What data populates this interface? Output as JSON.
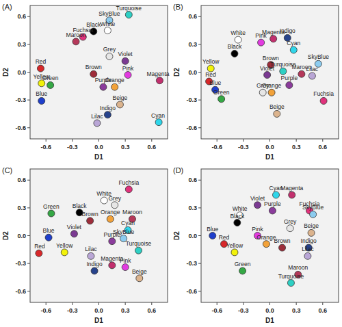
{
  "chart_data": [
    {
      "type": "scatter",
      "title": "(A)",
      "x_label": "D1",
      "y_label": "D2",
      "xlim": [
        -0.78,
        0.78
      ],
      "ylim": [
        -0.72,
        0.72
      ],
      "xticks": [
        -0.6,
        -0.3,
        {
          "value": 0,
          "label": "0.0"
        },
        0.3,
        0.6
      ],
      "yticks": [
        -0.6,
        -0.3,
        {
          "value": 0,
          "label": "0.0"
        },
        0.3,
        0.6
      ],
      "marker": "circle",
      "series": [
        {
          "name": "Turquoise",
          "color": "#2ed0c4",
          "x": [
            0.34
          ],
          "values": [
            0.62
          ]
        },
        {
          "name": "SkyBlue",
          "color": "#8ccbef",
          "x": [
            0.12
          ],
          "values": [
            0.56
          ]
        },
        {
          "name": "Fuchsia",
          "color": "#e0327c",
          "x": [
            -0.18
          ],
          "values": [
            0.38
          ]
        },
        {
          "name": "Maroon",
          "color": "#b5385a",
          "x": [
            -0.26
          ],
          "values": [
            0.33
          ]
        },
        {
          "name": "Black",
          "color": "#000000",
          "x": [
            -0.06
          ],
          "values": [
            0.44
          ]
        },
        {
          "name": "White",
          "color": "#ffffff",
          "x": [
            0.1
          ],
          "values": [
            0.45
          ]
        },
        {
          "name": "Grey",
          "color": "#e6e6e6",
          "x": [
            0.12
          ],
          "values": [
            0.17
          ]
        },
        {
          "name": "Violet",
          "color": "#7b3a92",
          "x": [
            0.3
          ],
          "values": [
            0.12
          ]
        },
        {
          "name": "Red",
          "color": "#d7282a",
          "x": [
            -0.66
          ],
          "values": [
            0.04
          ]
        },
        {
          "name": "Yellow",
          "color": "#f2f20a",
          "x": [
            -0.65
          ],
          "values": [
            -0.12
          ]
        },
        {
          "name": "Green",
          "color": "#35a845",
          "x": [
            -0.55
          ],
          "values": [
            -0.14
          ]
        },
        {
          "name": "Blue",
          "color": "#1f3fcc",
          "x": [
            -0.65
          ],
          "values": [
            -0.31
          ]
        },
        {
          "name": "Brown",
          "color": "#9e2d3a",
          "x": [
            -0.06
          ],
          "values": [
            -0.02
          ]
        },
        {
          "name": "Pink",
          "color": "#e23be0",
          "x": [
            0.33
          ],
          "values": [
            -0.03
          ]
        },
        {
          "name": "Magenta",
          "color": "#c2306e",
          "x": [
            0.69
          ],
          "values": [
            -0.09
          ]
        },
        {
          "name": "Purple",
          "color": "#8b3c9c",
          "x": [
            0.05
          ],
          "values": [
            -0.16
          ]
        },
        {
          "name": "Orange",
          "color": "#f2a23a",
          "x": [
            0.18
          ],
          "values": [
            -0.16
          ]
        },
        {
          "name": "Beige",
          "color": "#dcb48e",
          "x": [
            0.24
          ],
          "values": [
            -0.35
          ]
        },
        {
          "name": "Indigo",
          "color": "#27438c",
          "x": [
            0.1
          ],
          "values": [
            -0.46
          ]
        },
        {
          "name": "Lilac",
          "color": "#b9a6d6",
          "x": [
            -0.02
          ],
          "values": [
            -0.55
          ]
        },
        {
          "name": "Cyan",
          "color": "#2fd6ea",
          "x": [
            0.68
          ],
          "values": [
            -0.54
          ]
        }
      ]
    },
    {
      "type": "scatter",
      "title": "(B)",
      "x_label": "D1",
      "y_label": "D2",
      "xlim": [
        -0.78,
        0.78
      ],
      "ylim": [
        -0.72,
        0.72
      ],
      "xticks": [
        -0.6,
        -0.3,
        {
          "value": 0,
          "label": "0.0"
        },
        0.3,
        0.6
      ],
      "yticks": [
        -0.6,
        -0.3,
        {
          "value": 0,
          "label": "0.0"
        },
        0.3,
        0.6
      ],
      "marker": "circle",
      "series": [
        {
          "name": "White",
          "color": "#ffffff",
          "x": [
            -0.36
          ],
          "values": [
            0.35
          ]
        },
        {
          "name": "Black",
          "color": "#000000",
          "x": [
            -0.4
          ],
          "values": [
            0.2
          ]
        },
        {
          "name": "Pink",
          "color": "#e23be0",
          "x": [
            -0.1
          ],
          "values": [
            0.32
          ]
        },
        {
          "name": "Magenta",
          "color": "#c2306e",
          "x": [
            0.04
          ],
          "values": [
            0.36
          ]
        },
        {
          "name": "Indigo",
          "color": "#27438c",
          "x": [
            0.2
          ],
          "values": [
            0.37
          ]
        },
        {
          "name": "Cyan",
          "color": "#2fd6ea",
          "x": [
            0.27
          ],
          "values": [
            0.24
          ]
        },
        {
          "name": "SkyBlue",
          "color": "#8ccbef",
          "x": [
            0.55
          ],
          "values": [
            0.09
          ]
        },
        {
          "name": "Brown",
          "color": "#9e2d3a",
          "x": [
            0.01
          ],
          "values": [
            0.08
          ]
        },
        {
          "name": "Turquoise",
          "color": "#2ed0c4",
          "x": [
            0.15
          ],
          "values": [
            0.01
          ]
        },
        {
          "name": "Maroon",
          "color": "#b5385a",
          "x": [
            0.36
          ],
          "values": [
            -0.02
          ]
        },
        {
          "name": "Lilac",
          "color": "#b9a6d6",
          "x": [
            0.48
          ],
          "values": [
            -0.04
          ]
        },
        {
          "name": "Violet",
          "color": "#7b3a92",
          "x": [
            -0.03
          ],
          "values": [
            -0.03
          ]
        },
        {
          "name": "Purple",
          "color": "#8b3c9c",
          "x": [
            0.22
          ],
          "values": [
            -0.14
          ]
        },
        {
          "name": "Yellow",
          "color": "#f2f20a",
          "x": [
            -0.67
          ],
          "values": [
            0.04
          ]
        },
        {
          "name": "Red",
          "color": "#d7282a",
          "x": [
            -0.69
          ],
          "values": [
            -0.1
          ]
        },
        {
          "name": "Blue",
          "color": "#1f3fcc",
          "x": [
            -0.62
          ],
          "values": [
            -0.19
          ]
        },
        {
          "name": "Green",
          "color": "#35a845",
          "x": [
            -0.55
          ],
          "values": [
            -0.29
          ]
        },
        {
          "name": "Grey",
          "color": "#e6e6e6",
          "x": [
            -0.08
          ],
          "values": [
            -0.22
          ]
        },
        {
          "name": "Orange",
          "color": "#f2a23a",
          "x": [
            0.02
          ],
          "values": [
            -0.22
          ]
        },
        {
          "name": "Beige",
          "color": "#dcb48e",
          "x": [
            0.08
          ],
          "values": [
            -0.45
          ]
        },
        {
          "name": "Fuchsia",
          "color": "#e0327c",
          "x": [
            0.61
          ],
          "values": [
            -0.31
          ]
        }
      ]
    },
    {
      "type": "scatter",
      "title": "(C)",
      "x_label": "D1",
      "y_label": "D2",
      "xlim": [
        -0.78,
        0.78
      ],
      "ylim": [
        -0.72,
        0.72
      ],
      "xticks": [
        -0.6,
        -0.3,
        {
          "value": 0,
          "label": "0.0"
        },
        0.3,
        0.6
      ],
      "yticks": [
        -0.6,
        -0.3,
        {
          "value": 0,
          "label": "0.0"
        },
        0.3,
        0.6
      ],
      "marker": "circle",
      "series": [
        {
          "name": "Fuchsia",
          "color": "#e0327c",
          "x": [
            0.34
          ],
          "values": [
            0.5
          ]
        },
        {
          "name": "White",
          "color": "#ffffff",
          "x": [
            0.06
          ],
          "values": [
            0.38
          ]
        },
        {
          "name": "Grey",
          "color": "#e6e6e6",
          "x": [
            0.18
          ],
          "values": [
            0.33
          ]
        },
        {
          "name": "Black",
          "color": "#000000",
          "x": [
            -0.22
          ],
          "values": [
            0.25
          ]
        },
        {
          "name": "Green",
          "color": "#35a845",
          "x": [
            -0.54
          ],
          "values": [
            0.24
          ]
        },
        {
          "name": "Brown",
          "color": "#9e2d3a",
          "x": [
            -0.1
          ],
          "values": [
            0.16
          ]
        },
        {
          "name": "Orange",
          "color": "#f2a23a",
          "x": [
            0.13
          ],
          "values": [
            0.18
          ]
        },
        {
          "name": "Maroon",
          "color": "#b5385a",
          "x": [
            0.38
          ],
          "values": [
            0.18
          ]
        },
        {
          "name": "Blue",
          "color": "#1f3fcc",
          "x": [
            -0.57
          ],
          "values": [
            -0.02
          ]
        },
        {
          "name": "Violet",
          "color": "#7b3a92",
          "x": [
            -0.28
          ],
          "values": [
            0.02
          ]
        },
        {
          "name": "Cyan",
          "color": "#2fd6ea",
          "x": [
            0.33
          ],
          "values": [
            0.06
          ]
        },
        {
          "name": "Purple",
          "color": "#8b3c9c",
          "x": [
            0.15
          ],
          "values": [
            -0.06
          ]
        },
        {
          "name": "SkyBlue",
          "color": "#8ccbef",
          "x": [
            0.28
          ],
          "values": [
            -0.03
          ]
        },
        {
          "name": "Red",
          "color": "#d7282a",
          "x": [
            -0.68
          ],
          "values": [
            -0.19
          ]
        },
        {
          "name": "Yellow",
          "color": "#f2f20a",
          "x": [
            -0.39
          ],
          "values": [
            -0.18
          ]
        },
        {
          "name": "Turquoise",
          "color": "#2ed0c4",
          "x": [
            0.45
          ],
          "values": [
            -0.16
          ]
        },
        {
          "name": "Lilac",
          "color": "#b9a6d6",
          "x": [
            -0.09
          ],
          "values": [
            -0.22
          ]
        },
        {
          "name": "Magenta",
          "color": "#c2306e",
          "x": [
            0.15
          ],
          "values": [
            -0.32
          ]
        },
        {
          "name": "Pink",
          "color": "#e23be0",
          "x": [
            0.3
          ],
          "values": [
            -0.34
          ]
        },
        {
          "name": "Indigo",
          "color": "#27438c",
          "x": [
            -0.05
          ],
          "values": [
            -0.38
          ]
        },
        {
          "name": "Beige",
          "color": "#dcb48e",
          "x": [
            0.46
          ],
          "values": [
            -0.46
          ]
        }
      ]
    },
    {
      "type": "scatter",
      "title": "(D)",
      "x_label": "D1",
      "y_label": "D2",
      "xlim": [
        -0.78,
        0.78
      ],
      "ylim": [
        -0.72,
        0.72
      ],
      "xticks": [
        -0.6,
        -0.3,
        {
          "value": 0,
          "label": "0.0"
        },
        0.3,
        0.6
      ],
      "yticks": [
        -0.6,
        -0.3,
        {
          "value": 0,
          "label": "0.0"
        },
        0.3,
        0.6
      ],
      "marker": "circle",
      "series": [
        {
          "name": "Cyan",
          "color": "#2fd6ea",
          "x": [
            0.07
          ],
          "values": [
            0.44
          ]
        },
        {
          "name": "Magenta",
          "color": "#c2306e",
          "x": [
            0.25
          ],
          "values": [
            0.44
          ]
        },
        {
          "name": "Violet",
          "color": "#7b3a92",
          "x": [
            -0.14
          ],
          "values": [
            0.33
          ]
        },
        {
          "name": "Purple",
          "color": "#8b3c9c",
          "x": [
            0.03
          ],
          "values": [
            0.27
          ]
        },
        {
          "name": "Fuchsia",
          "color": "#e0327c",
          "x": [
            0.45
          ],
          "values": [
            0.27
          ]
        },
        {
          "name": "SkyBlue",
          "color": "#8ccbef",
          "x": [
            0.49
          ],
          "values": [
            0.23
          ]
        },
        {
          "name": "White",
          "color": "#ffffff",
          "x": [
            -0.34
          ],
          "values": [
            0.22
          ]
        },
        {
          "name": "Black",
          "color": "#000000",
          "x": [
            -0.37
          ],
          "values": [
            0.14
          ]
        },
        {
          "name": "Grey",
          "color": "#e6e6e6",
          "x": [
            0.23
          ],
          "values": [
            0.08
          ]
        },
        {
          "name": "Beige",
          "color": "#dcb48e",
          "x": [
            0.47
          ],
          "values": [
            0.03
          ]
        },
        {
          "name": "Blue",
          "color": "#1f3fcc",
          "x": [
            -0.65
          ],
          "values": [
            0.0
          ]
        },
        {
          "name": "Pink",
          "color": "#e23be0",
          "x": [
            -0.14
          ],
          "values": [
            0.0
          ]
        },
        {
          "name": "Red",
          "color": "#d7282a",
          "x": [
            -0.52
          ],
          "values": [
            -0.09
          ]
        },
        {
          "name": "Orange",
          "color": "#f2a23a",
          "x": [
            -0.04
          ],
          "values": [
            -0.09
          ]
        },
        {
          "name": "Brown",
          "color": "#9e2d3a",
          "x": [
            0.14
          ],
          "values": [
            -0.13
          ]
        },
        {
          "name": "Indigo",
          "color": "#27438c",
          "x": [
            0.44
          ],
          "values": [
            -0.13
          ]
        },
        {
          "name": "Yellow",
          "color": "#f2f20a",
          "x": [
            -0.4
          ],
          "values": [
            -0.18
          ]
        },
        {
          "name": "Lilac",
          "color": "#b9a6d6",
          "x": [
            0.43
          ],
          "values": [
            -0.22
          ]
        },
        {
          "name": "Green",
          "color": "#35a845",
          "x": [
            -0.31
          ],
          "values": [
            -0.38
          ]
        },
        {
          "name": "Maroon",
          "color": "#b5385a",
          "x": [
            0.32
          ],
          "values": [
            -0.42
          ]
        },
        {
          "name": "Turquoise",
          "color": "#2ed0c4",
          "x": [
            0.24
          ],
          "values": [
            -0.51
          ]
        }
      ]
    }
  ]
}
